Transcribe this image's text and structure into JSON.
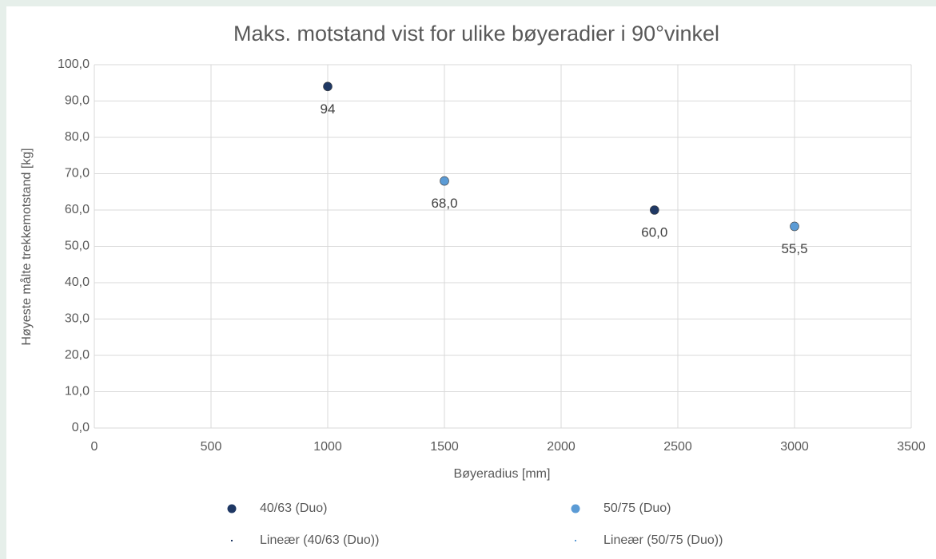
{
  "chart_data": {
    "type": "scatter",
    "title": "Maks. motstand vist for ulike bøyeradier i 90°vinkel",
    "x_label": "Bøyeradius [mm]",
    "y_label": "Høyeste målte trekkemotstand [kg]",
    "xlim": [
      0,
      3500
    ],
    "xticks": [
      0,
      500,
      1000,
      1500,
      2000,
      2500,
      3000,
      3500
    ],
    "ylim": [
      0,
      100
    ],
    "yticks": [
      {
        "value": 0,
        "label": "0,0"
      },
      {
        "value": 10,
        "label": "10,0"
      },
      {
        "value": 20,
        "label": "20,0"
      },
      {
        "value": 30,
        "label": "30,0"
      },
      {
        "value": 40,
        "label": "40,0"
      },
      {
        "value": 50,
        "label": "50,0"
      },
      {
        "value": 60,
        "label": "60,0"
      },
      {
        "value": 70,
        "label": "70,0"
      },
      {
        "value": 80,
        "label": "80,0"
      },
      {
        "value": 90,
        "label": "90,0"
      },
      {
        "value": 100,
        "label": "100,0"
      }
    ],
    "grid": true,
    "legend": "bottom",
    "series": [
      {
        "name": "40/63 (Duo)",
        "color": "#1f3864",
        "x": [
          1000,
          2400
        ],
        "values": [
          94,
          60
        ],
        "value_labels": [
          "94",
          "60,0"
        ]
      },
      {
        "name": "50/75 (Duo)",
        "color": "#5b9bd5",
        "x": [
          1500,
          3000
        ],
        "values": [
          68,
          55.5
        ],
        "value_labels": [
          "68,0",
          "55,5"
        ]
      }
    ],
    "trendlines": [
      {
        "name": "Lineær (40/63 (Duo))",
        "color": "#1f3864"
      },
      {
        "name": "Lineær (50/75 (Duo))",
        "color": "#5b9bd5"
      }
    ]
  }
}
